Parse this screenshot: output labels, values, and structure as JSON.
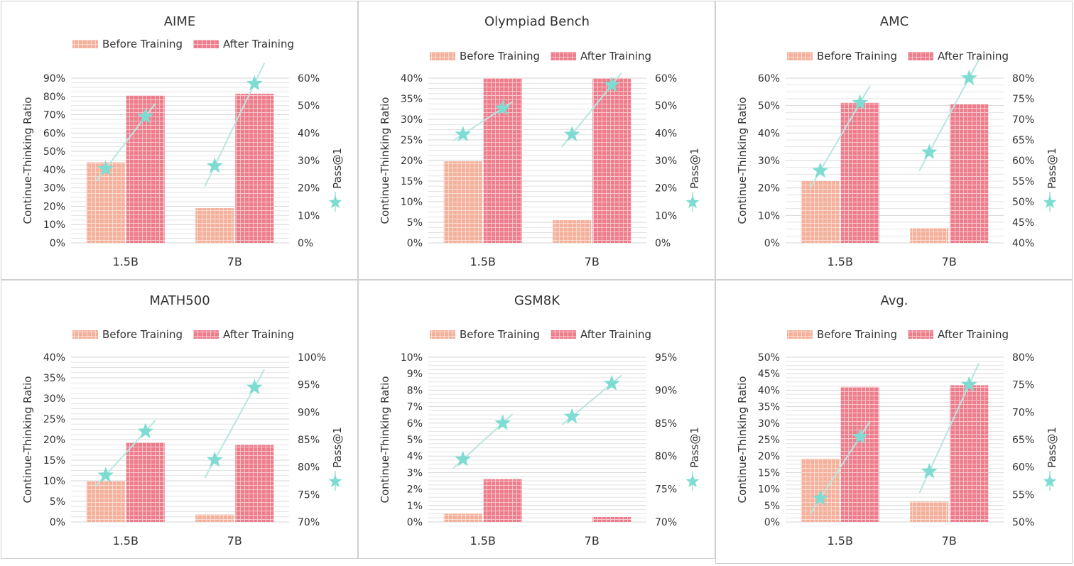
{
  "colors": {
    "before": "#f4b09a",
    "after": "#ee7d8c",
    "pass": "#7fdcd2",
    "passLine": "#b9e6e1",
    "grid": "#e3e3e3"
  },
  "legend": {
    "before": "Before Training",
    "after": "After Training"
  },
  "axes": {
    "left_label": "Continue-Thinking Ratio",
    "right_label": "Pass@1"
  },
  "chart_data": [
    {
      "type": "bar+line",
      "title": "AIME",
      "categories": [
        "1.5B",
        "7B"
      ],
      "series": [
        {
          "name": "Before Training",
          "axis": "left",
          "values": [
            44,
            19
          ]
        },
        {
          "name": "After Training",
          "axis": "left",
          "values": [
            80.5,
            81.5
          ]
        },
        {
          "name": "Pass@1",
          "axis": "right",
          "values": [
            [
              27,
              46
            ],
            [
              28,
              58
            ]
          ]
        }
      ],
      "ylim": [
        0,
        90
      ],
      "ystep": 10,
      "ylim_right": [
        0,
        60
      ],
      "ystep_right": 10
    },
    {
      "type": "bar+line",
      "title": "Olympiad Bench",
      "categories": [
        "1.5B",
        "7B"
      ],
      "series": [
        {
          "name": "Before Training",
          "axis": "left",
          "values": [
            19.8,
            5.5
          ]
        },
        {
          "name": "After Training",
          "axis": "left",
          "values": [
            40,
            40
          ]
        },
        {
          "name": "Pass@1",
          "axis": "right",
          "values": [
            [
              39.5,
              49
            ],
            [
              39.5,
              57.5
            ]
          ]
        }
      ],
      "ylim": [
        0,
        40
      ],
      "ystep": 5,
      "ylim_right": [
        0,
        60
      ],
      "ystep_right": 10
    },
    {
      "type": "bar+line",
      "title": "AMC",
      "categories": [
        "1.5B",
        "7B"
      ],
      "series": [
        {
          "name": "Before Training",
          "axis": "left",
          "values": [
            22.5,
            5.3
          ]
        },
        {
          "name": "After Training",
          "axis": "left",
          "values": [
            51,
            50.5
          ]
        },
        {
          "name": "Pass@1",
          "axis": "right",
          "values": [
            [
              57.5,
              74
            ],
            [
              62,
              80
            ]
          ]
        }
      ],
      "ylim": [
        0,
        60
      ],
      "ystep": 10,
      "ylim_right": [
        40,
        80
      ],
      "ystep_right": 5
    },
    {
      "type": "bar+line",
      "title": "MATH500",
      "categories": [
        "1.5B",
        "7B"
      ],
      "series": [
        {
          "name": "Before Training",
          "axis": "left",
          "values": [
            10,
            1.8
          ]
        },
        {
          "name": "After Training",
          "axis": "left",
          "values": [
            19.3,
            18.7
          ]
        },
        {
          "name": "Pass@1",
          "axis": "right",
          "values": [
            [
              78.5,
              86.5
            ],
            [
              81.3,
              94.5
            ]
          ]
        }
      ],
      "ylim": [
        0,
        40
      ],
      "ystep": 5,
      "ylim_right": [
        70,
        100
      ],
      "ystep_right": 5
    },
    {
      "type": "bar+line",
      "title": "GSM8K",
      "categories": [
        "1.5B",
        "7B"
      ],
      "series": [
        {
          "name": "Before Training",
          "axis": "left",
          "values": [
            0.5,
            0
          ]
        },
        {
          "name": "After Training",
          "axis": "left",
          "values": [
            2.6,
            0.3
          ]
        },
        {
          "name": "Pass@1",
          "axis": "right",
          "values": [
            [
              79.5,
              85
            ],
            [
              86,
              91
            ]
          ]
        }
      ],
      "ylim": [
        0,
        10
      ],
      "ystep": 1,
      "ylim_right": [
        70,
        95
      ],
      "ystep_right": 5
    },
    {
      "type": "bar+line",
      "title": "Avg.",
      "categories": [
        "1.5B",
        "7B"
      ],
      "series": [
        {
          "name": "Before Training",
          "axis": "left",
          "values": [
            19.2,
            6.2
          ]
        },
        {
          "name": "After Training",
          "axis": "left",
          "values": [
            41,
            41.5
          ]
        },
        {
          "name": "Pass@1",
          "axis": "right",
          "values": [
            [
              54.3,
              65.5
            ],
            [
              59.2,
              75
            ]
          ]
        }
      ],
      "ylim": [
        0,
        50
      ],
      "ystep": 5,
      "ylim_right": [
        50,
        80
      ],
      "ystep_right": 5
    }
  ]
}
